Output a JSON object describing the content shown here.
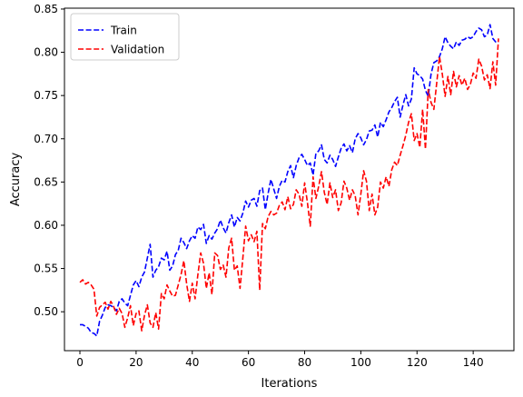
{
  "chart_data": {
    "type": "line",
    "title": "",
    "xlabel": "Iterations",
    "ylabel": "Accuracy",
    "xlim": [
      -5.5,
      154.5
    ],
    "ylim": [
      0.455,
      0.851
    ],
    "xticks": [
      0,
      20,
      40,
      60,
      80,
      100,
      120,
      140
    ],
    "yticks": [
      0.5,
      0.55,
      0.6,
      0.65,
      0.7,
      0.75,
      0.8,
      0.85
    ],
    "ytick_labels": [
      "0.50",
      "0.55",
      "0.60",
      "0.65",
      "0.70",
      "0.75",
      "0.80",
      "0.85"
    ],
    "grid": false,
    "legend_position": "upper-left",
    "series": [
      {
        "name": "Train",
        "color": "#0000ff",
        "linestyle": "dashed",
        "values": [
          0.485,
          0.485,
          0.483,
          0.481,
          0.476,
          0.475,
          0.472,
          0.489,
          0.496,
          0.505,
          0.508,
          0.507,
          0.505,
          0.501,
          0.512,
          0.515,
          0.51,
          0.507,
          0.519,
          0.531,
          0.536,
          0.529,
          0.54,
          0.546,
          0.562,
          0.578,
          0.54,
          0.548,
          0.552,
          0.562,
          0.56,
          0.57,
          0.548,
          0.553,
          0.566,
          0.571,
          0.585,
          0.58,
          0.573,
          0.582,
          0.588,
          0.585,
          0.598,
          0.595,
          0.601,
          0.579,
          0.588,
          0.584,
          0.591,
          0.596,
          0.606,
          0.597,
          0.591,
          0.603,
          0.612,
          0.598,
          0.609,
          0.605,
          0.614,
          0.628,
          0.621,
          0.629,
          0.631,
          0.622,
          0.64,
          0.643,
          0.618,
          0.637,
          0.653,
          0.642,
          0.631,
          0.645,
          0.652,
          0.65,
          0.662,
          0.669,
          0.655,
          0.669,
          0.678,
          0.682,
          0.676,
          0.669,
          0.672,
          0.658,
          0.683,
          0.686,
          0.693,
          0.676,
          0.672,
          0.681,
          0.676,
          0.668,
          0.679,
          0.689,
          0.694,
          0.686,
          0.692,
          0.684,
          0.7,
          0.706,
          0.701,
          0.693,
          0.699,
          0.709,
          0.71,
          0.716,
          0.702,
          0.719,
          0.714,
          0.722,
          0.731,
          0.736,
          0.743,
          0.748,
          0.725,
          0.739,
          0.751,
          0.738,
          0.746,
          0.782,
          0.775,
          0.773,
          0.769,
          0.756,
          0.749,
          0.775,
          0.788,
          0.79,
          0.795,
          0.804,
          0.818,
          0.811,
          0.807,
          0.804,
          0.812,
          0.808,
          0.814,
          0.815,
          0.818,
          0.816,
          0.818,
          0.824,
          0.828,
          0.826,
          0.818,
          0.82,
          0.832,
          0.816,
          0.812,
          0.811
        ]
      },
      {
        "name": "Validation",
        "color": "#ff0000",
        "linestyle": "dashed",
        "values": [
          0.534,
          0.537,
          0.532,
          0.534,
          0.531,
          0.526,
          0.495,
          0.505,
          0.508,
          0.511,
          0.503,
          0.512,
          0.506,
          0.497,
          0.504,
          0.498,
          0.482,
          0.493,
          0.507,
          0.484,
          0.498,
          0.501,
          0.478,
          0.496,
          0.508,
          0.487,
          0.482,
          0.499,
          0.48,
          0.521,
          0.515,
          0.531,
          0.524,
          0.518,
          0.519,
          0.531,
          0.543,
          0.559,
          0.532,
          0.512,
          0.533,
          0.515,
          0.543,
          0.568,
          0.556,
          0.527,
          0.545,
          0.52,
          0.568,
          0.565,
          0.549,
          0.554,
          0.54,
          0.574,
          0.585,
          0.548,
          0.553,
          0.527,
          0.562,
          0.599,
          0.582,
          0.589,
          0.581,
          0.593,
          0.525,
          0.602,
          0.596,
          0.61,
          0.616,
          0.612,
          0.614,
          0.623,
          0.627,
          0.618,
          0.633,
          0.619,
          0.624,
          0.641,
          0.636,
          0.622,
          0.649,
          0.626,
          0.599,
          0.656,
          0.631,
          0.645,
          0.662,
          0.638,
          0.624,
          0.649,
          0.632,
          0.641,
          0.617,
          0.626,
          0.651,
          0.643,
          0.629,
          0.641,
          0.634,
          0.612,
          0.636,
          0.663,
          0.651,
          0.617,
          0.636,
          0.612,
          0.621,
          0.65,
          0.643,
          0.656,
          0.645,
          0.664,
          0.673,
          0.669,
          0.681,
          0.692,
          0.704,
          0.719,
          0.729,
          0.698,
          0.706,
          0.69,
          0.734,
          0.688,
          0.757,
          0.742,
          0.734,
          0.764,
          0.795,
          0.775,
          0.749,
          0.772,
          0.751,
          0.778,
          0.76,
          0.773,
          0.762,
          0.77,
          0.757,
          0.763,
          0.776,
          0.77,
          0.792,
          0.784,
          0.768,
          0.774,
          0.758,
          0.789,
          0.762,
          0.816
        ]
      }
    ]
  }
}
